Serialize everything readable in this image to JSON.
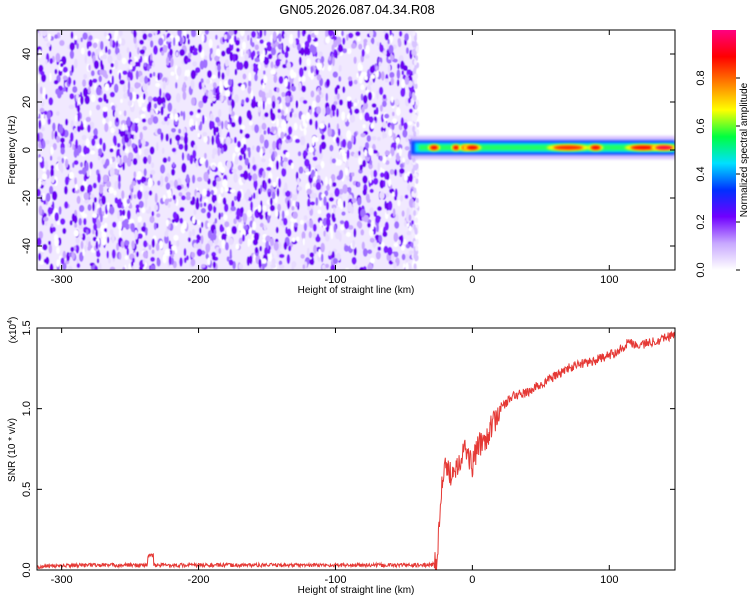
{
  "title": "GN05.2026.087.04.34.R08",
  "chart_data": [
    {
      "type": "heatmap",
      "xlabel": "Height of straight line (km)",
      "ylabel": "Frequency (Hz)",
      "xlim": [
        -318,
        148
      ],
      "ylim": [
        -50,
        50
      ],
      "xticks": [
        -300,
        -200,
        -100,
        0,
        100
      ],
      "yticks": [
        -40,
        -20,
        0,
        20,
        40
      ],
      "noise_region": {
        "x": [
          -318,
          -42
        ],
        "y": [
          -50,
          50
        ],
        "level": "low"
      },
      "empty_region": {
        "x": [
          -42,
          148
        ],
        "y": [
          -50,
          50
        ]
      },
      "signal_band": {
        "x": [
          -45,
          148
        ],
        "y_center": 1,
        "y_halfwidth": 4,
        "level": "high"
      },
      "colorbar": {
        "label": "Normalized spectral amplitude",
        "range": [
          0,
          1
        ],
        "ticks": [
          "0.0",
          "0.2",
          "0.4",
          "0.6",
          "0.8"
        ],
        "tick_values": [
          0,
          0.2,
          0.4,
          0.6,
          0.8
        ],
        "colors": [
          "#ffffff",
          "#c8a8ff",
          "#7000ff",
          "#0030ff",
          "#00e0ff",
          "#00ff40",
          "#ffff00",
          "#ff8000",
          "#ff0000",
          "#ff0080"
        ]
      }
    },
    {
      "type": "line",
      "xlabel": "Height of straight line (km)",
      "ylabel": "SNR (10 * v/v)",
      "yscale_label": "(x10",
      "yscale_exp": "4",
      "yscale_close": ")",
      "xlim": [
        -318,
        148
      ],
      "ylim": [
        0,
        1.5
      ],
      "xticks": [
        -300,
        -200,
        -100,
        0,
        100
      ],
      "yticks": [
        "0.0",
        "0.5",
        "1.0",
        "1.5"
      ],
      "ytick_values": [
        0,
        0.5,
        1.0,
        1.5
      ],
      "color": "#e53935",
      "series": [
        {
          "x": [
            -318,
            -290,
            -260,
            -235,
            -200,
            -150,
            -100,
            -60,
            -30,
            -26,
            -24,
            -22,
            -20,
            -15,
            -10,
            -5,
            0,
            5,
            10,
            15,
            20,
            30,
            40,
            50,
            60,
            70,
            80,
            90,
            100,
            110,
            115,
            120,
            130,
            140,
            148
          ],
          "y": [
            0.02,
            0.03,
            0.03,
            0.03,
            0.03,
            0.03,
            0.03,
            0.03,
            0.03,
            0.05,
            0.3,
            0.55,
            0.62,
            0.6,
            0.68,
            0.75,
            0.65,
            0.78,
            0.82,
            0.9,
            1.0,
            1.08,
            1.1,
            1.15,
            1.2,
            1.25,
            1.28,
            1.3,
            1.33,
            1.38,
            1.42,
            1.39,
            1.41,
            1.44,
            1.46
          ]
        }
      ]
    }
  ]
}
